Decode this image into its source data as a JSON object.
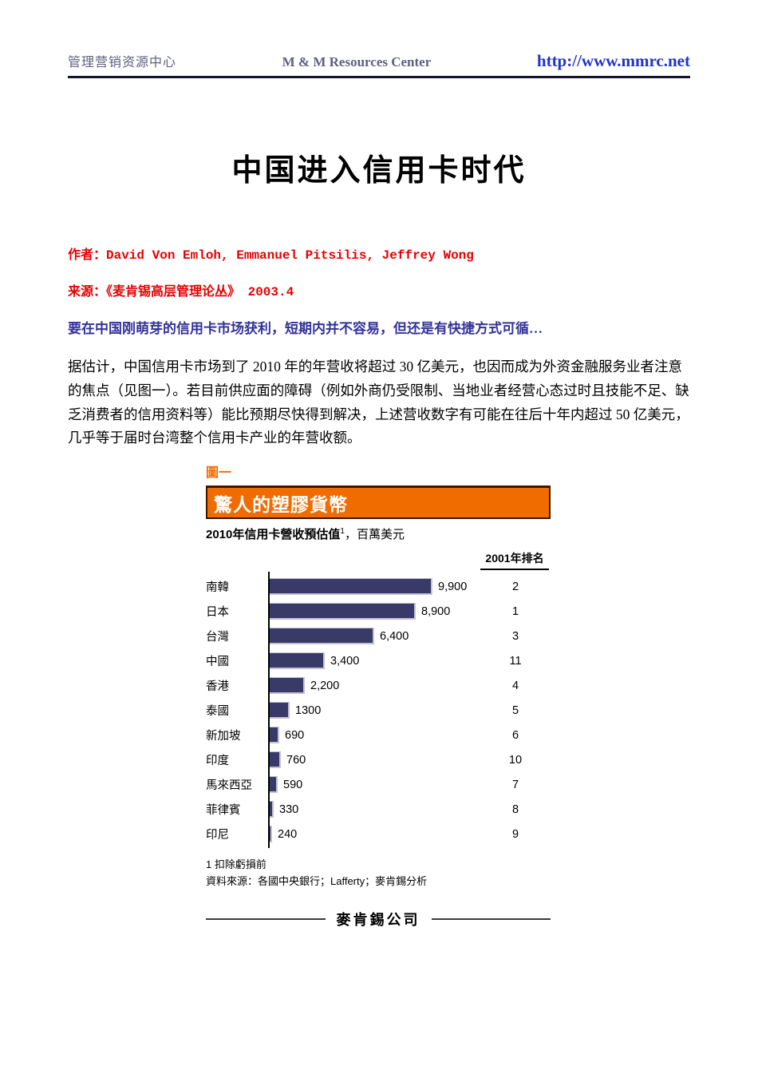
{
  "header": {
    "left": "管理营销资源中心",
    "center": "M & M Resources Center",
    "url": "http://www.mmrc.net"
  },
  "article": {
    "title": "中国进入信用卡时代",
    "author_line": "作者：David Von Emloh, Emmanuel Pitsilis, Jeffrey Wong",
    "source_line": "来源：《麦肯锡高层管理论丛》 2003.4",
    "teaser": "要在中国刚萌芽的信用卡市场获利，短期内并不容易，但还是有快捷方式可循…",
    "body": "据估计，中国信用卡市场到了 2010 年的年营收将超过 30 亿美元，也因而成为外资金融服务业者注意的焦点（见图一）。若目前供应面的障碍（例如外商仍受限制、当地业者经营心态过时且技能不足、缺乏消费者的信用资料等）能比预期尽快得到解决，上述营收数字有可能在往后十年内超过 50 亿美元，几乎等于届时台湾整个信用卡产业的年营收额。"
  },
  "chart_data": {
    "type": "bar",
    "orientation": "horizontal",
    "figure_label": "圖一",
    "title": "驚人的塑膠貨幣",
    "subtitle_bold": "2010年信用卡營收預估值",
    "subtitle_sup": "1",
    "subtitle_rest": "，百萬美元",
    "rank_header": "2001年排名",
    "categories": [
      "南韓",
      "日本",
      "台灣",
      "中國",
      "香港",
      "泰國",
      "新加坡",
      "印度",
      "馬來西亞",
      "菲律賓",
      "印尼"
    ],
    "values": [
      9900,
      8900,
      6400,
      3400,
      2200,
      1300,
      690,
      760,
      590,
      330,
      240
    ],
    "value_labels": [
      "9,900",
      "8,900",
      "6,400",
      "3,400",
      "2,200",
      "1300",
      "690",
      "760",
      "590",
      "330",
      "240"
    ],
    "ranks_2001": [
      "2",
      "1",
      "3",
      "11",
      "4",
      "5",
      "6",
      "10",
      "7",
      "8",
      "9"
    ],
    "xlim": [
      0,
      10300
    ],
    "grid": false,
    "legend": "none",
    "footnote": "1 扣除虧損前",
    "source": "資料來源：各國中央銀行；Lafferty；麥肯錫分析",
    "brand": "麥肯錫公司",
    "colors": {
      "banner_orange": "#f06c00",
      "bar_navy": "#3a3a68",
      "bar_edge": "#c2c2d4",
      "accent_red": "#e60000",
      "teaser_blue": "#333399",
      "link_blue": "#2233cc",
      "header_slate": "#5f5f82"
    }
  }
}
